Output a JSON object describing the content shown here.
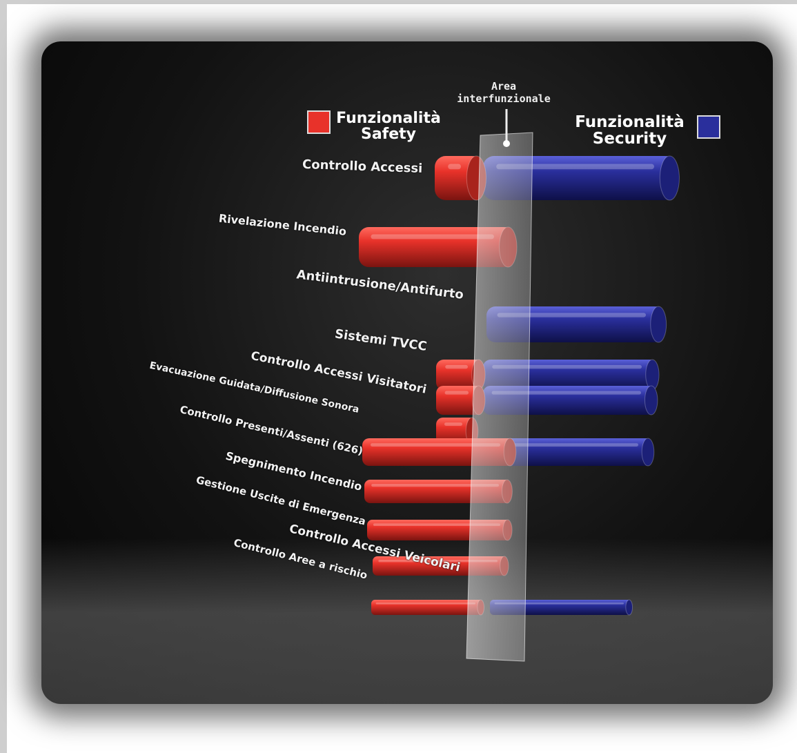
{
  "legend": {
    "safety_line1": "Funzionalità",
    "safety_line2": "Safety",
    "security_line1": "Funzionalità",
    "security_line2": "Security",
    "area_line1": "Area",
    "area_line2": "interfunzionale",
    "safety_color": "#e8322a",
    "security_color": "#2a2f9c"
  },
  "rows": [
    {
      "label": "Controllo Accessi",
      "safety": true,
      "security": true
    },
    {
      "label": "Rivelazione Incendio",
      "safety": true,
      "security": false
    },
    {
      "label": "Antiintrusione/Antifurto",
      "safety": false,
      "security": true
    },
    {
      "label": "Sistemi TVCC",
      "safety": true,
      "security": true
    },
    {
      "label": "Controllo Accessi Visitatori",
      "safety": true,
      "security": true
    },
    {
      "label": "Evacuazione Guidata/Diffusione Sonora",
      "safety": true,
      "security": false
    },
    {
      "label": "Controllo Presenti/Assenti (626)",
      "safety": true,
      "security": true
    },
    {
      "label": "Spegnimento Incendio",
      "safety": true,
      "security": false
    },
    {
      "label": "Gestione Uscite di Emergenza",
      "safety": true,
      "security": false
    },
    {
      "label": "Controllo Accessi Veicolari",
      "safety": true,
      "security": true
    },
    {
      "label": "Controllo Aree a rischio",
      "safety": true,
      "security": true
    }
  ]
}
